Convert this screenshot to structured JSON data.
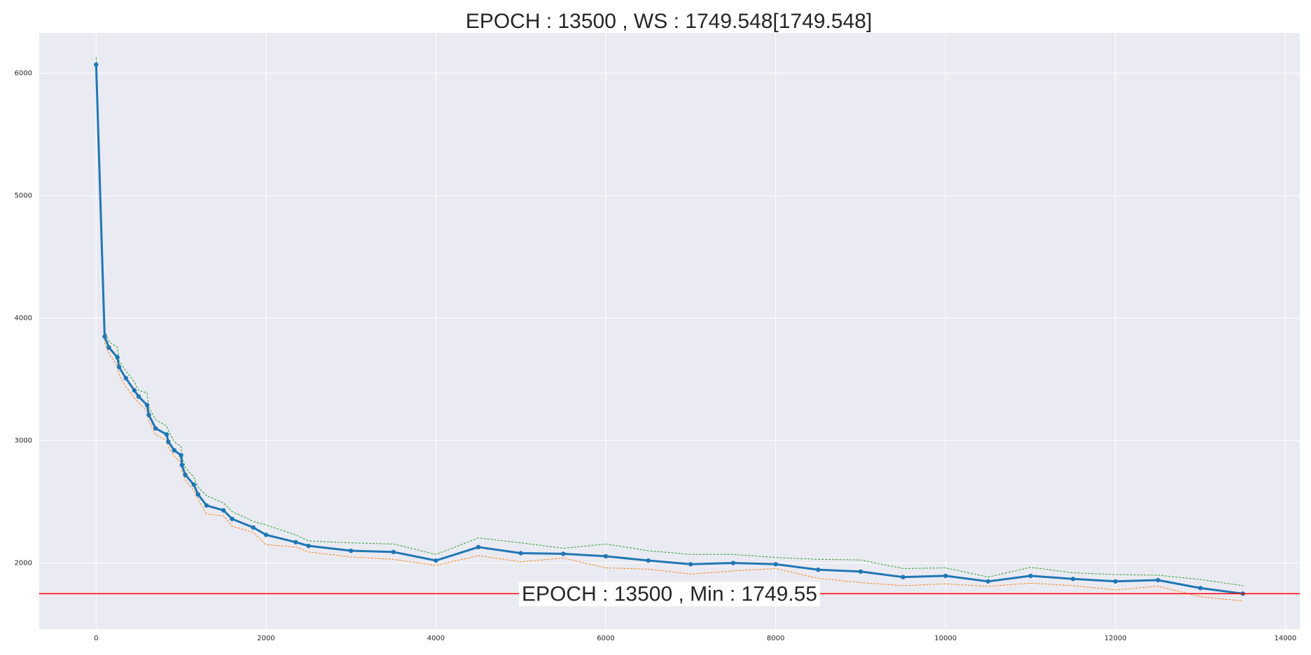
{
  "chart_data": {
    "type": "line",
    "title": "EPOCH : 13500 , WS : 1749.548[1749.548]",
    "xlabel": "",
    "ylabel": "",
    "xlim": [
      -670,
      14170
    ],
    "ylim": [
      1460,
      6330
    ],
    "x_ticks": [
      0,
      2000,
      4000,
      6000,
      8000,
      10000,
      12000,
      14000
    ],
    "y_ticks": [
      2000,
      3000,
      4000,
      5000,
      6000
    ],
    "grid": true,
    "legend": "none",
    "colors": {
      "background": "#eaeaf2",
      "grid": "#ffffff",
      "main": "#1f77b4",
      "upper": "#2ca02c",
      "lower": "#ff7f0e",
      "hline": "#ff0000"
    },
    "x": [
      0,
      100,
      150,
      250,
      270,
      350,
      450,
      500,
      600,
      620,
      700,
      830,
      850,
      920,
      1000,
      1010,
      1050,
      1150,
      1200,
      1300,
      1500,
      1600,
      1850,
      2000,
      2350,
      2500,
      3000,
      3500,
      4000,
      4500,
      5000,
      5500,
      6000,
      6500,
      7000,
      7500,
      8000,
      8500,
      9000,
      9500,
      10000,
      10500,
      11000,
      11500,
      12000,
      12500,
      13000,
      13500
    ],
    "series": [
      {
        "style": "solid-markers",
        "values": [
          6070,
          3850,
          3760,
          3680,
          3600,
          3510,
          3410,
          3360,
          3290,
          3210,
          3100,
          3050,
          2990,
          2920,
          2880,
          2800,
          2720,
          2640,
          2560,
          2470,
          2430,
          2360,
          2290,
          2230,
          2170,
          2140,
          2100,
          2090,
          2020,
          2130,
          2080,
          2075,
          2055,
          2020,
          1990,
          2000,
          1990,
          1945,
          1930,
          1885,
          1895,
          1850,
          1895,
          1870,
          1850,
          1860,
          1795,
          1750
        ]
      },
      {
        "style": "dashed-upper",
        "values": [
          6130,
          3900,
          3810,
          3760,
          3650,
          3570,
          3480,
          3410,
          3390,
          3270,
          3170,
          3120,
          3080,
          2990,
          2950,
          2870,
          2780,
          2700,
          2620,
          2550,
          2490,
          2420,
          2340,
          2310,
          2230,
          2180,
          2165,
          2155,
          2070,
          2205,
          2165,
          2120,
          2155,
          2100,
          2070,
          2070,
          2045,
          2030,
          2025,
          1955,
          1960,
          1885,
          1965,
          1920,
          1905,
          1900,
          1865,
          1815
        ]
      },
      {
        "style": "dashed-lower",
        "values": [
          6030,
          3800,
          3710,
          3610,
          3540,
          3440,
          3350,
          3310,
          3240,
          3160,
          3050,
          3000,
          2950,
          2870,
          2820,
          2750,
          2680,
          2590,
          2520,
          2400,
          2385,
          2300,
          2250,
          2150,
          2130,
          2090,
          2050,
          2030,
          1980,
          2060,
          2010,
          2040,
          1960,
          1950,
          1910,
          1935,
          1955,
          1875,
          1840,
          1815,
          1830,
          1810,
          1835,
          1815,
          1780,
          1810,
          1725,
          1690
        ]
      }
    ],
    "hline": {
      "value": 1749.55
    },
    "annotation": {
      "text": "EPOCH : 13500 , Min : 1749.55",
      "x": 6750,
      "y": 1749.55
    }
  }
}
